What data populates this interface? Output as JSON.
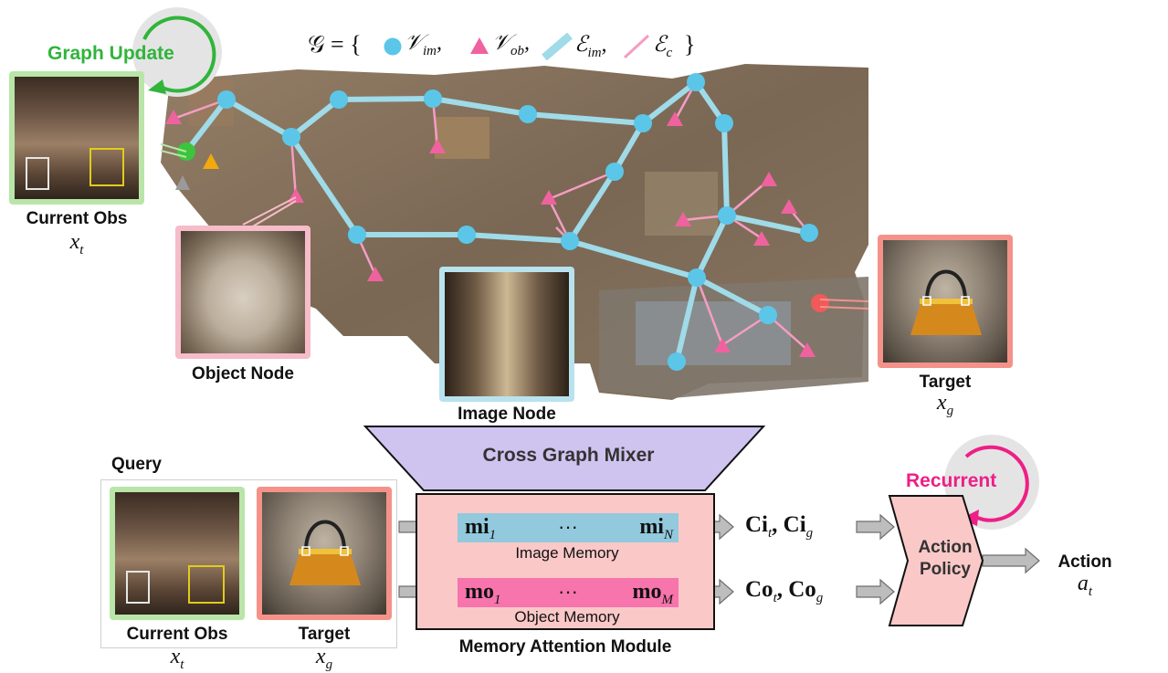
{
  "graph_legend": {
    "prefix": "𝒢 = {",
    "image_nodes": "𝒱",
    "image_nodes_sub": "im",
    "object_nodes": "𝒱",
    "object_nodes_sub": "ob",
    "image_edges": "ℰ",
    "image_edges_sub": "im",
    "context_edges": "ℰ",
    "context_edges_sub": "c",
    "suffix": "}"
  },
  "graph_update": {
    "label": "Graph Update"
  },
  "current_obs": {
    "label": "Current Obs",
    "symbol": "x",
    "symbol_sub": "t"
  },
  "object_node": {
    "label": "Object Node"
  },
  "image_node": {
    "label": "Image Node"
  },
  "target": {
    "label": "Target",
    "symbol": "x",
    "symbol_sub": "g"
  },
  "cross_graph_mixer": {
    "label": "Cross Graph Mixer"
  },
  "query": {
    "title": "Query",
    "obs_label": "Current Obs",
    "obs_symbol": "x",
    "obs_sub": "t",
    "target_label": "Target",
    "target_symbol": "x",
    "target_sub": "g"
  },
  "memory_module": {
    "title": "Memory Attention Module",
    "image_memory": {
      "caption": "Image Memory",
      "first": "mi",
      "first_sub": "1",
      "dots": "···",
      "last": "mi",
      "last_sub": "N"
    },
    "object_memory": {
      "caption": "Object Memory",
      "first": "mo",
      "first_sub": "1",
      "dots": "···",
      "last": "mo",
      "last_sub": "M"
    }
  },
  "outputs": {
    "image": {
      "a": "Ci",
      "a_sub": "t",
      "b": "Ci",
      "b_sub": "g"
    },
    "object": {
      "a": "Co",
      "a_sub": "t",
      "b": "Co",
      "b_sub": "g"
    }
  },
  "recurrent": {
    "label": "Recurrent"
  },
  "policy": {
    "line1": "Action",
    "line2": "Policy"
  },
  "action": {
    "label": "Action",
    "symbol": "a",
    "symbol_sub": "t"
  },
  "colors": {
    "image_node": "#5bc6e8",
    "object_node": "#f0629f",
    "image_edge": "#9fdbe8",
    "context_edge": "#f59dc3",
    "graph_update": "#31b43b",
    "recurrent": "#ee1f86",
    "mixer": "#cfc4ef",
    "memory_bg": "#fbc8c8",
    "image_memory": "#92c9dd",
    "object_memory": "#f774ac",
    "current_node": "#3cc43c",
    "target_node": "#f05a5a"
  }
}
